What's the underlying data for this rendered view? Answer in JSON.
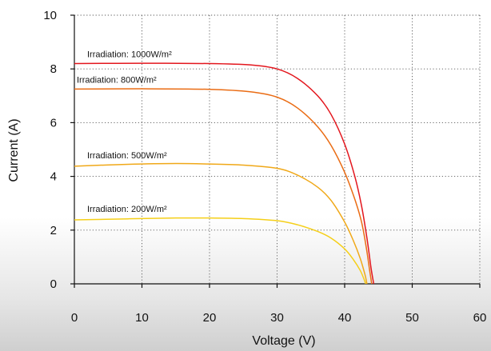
{
  "chart_data": {
    "type": "line",
    "xlabel": "Voltage (V)",
    "ylabel": "Current (A)",
    "xlim": [
      0,
      60
    ],
    "ylim": [
      0,
      10
    ],
    "xticks": [
      "0",
      "10",
      "20",
      "30",
      "40",
      "50",
      "60"
    ],
    "yticks": [
      "0",
      "2",
      "4",
      "6",
      "8",
      "10"
    ],
    "grid": true,
    "grid_style": "dotted",
    "series": [
      {
        "label": "Irradiation: 1000W/m²",
        "color": "#e3161d",
        "points": [
          [
            0,
            8.2
          ],
          [
            10,
            8.21
          ],
          [
            20,
            8.2
          ],
          [
            26,
            8.15
          ],
          [
            30,
            8.0
          ],
          [
            33,
            7.65
          ],
          [
            36,
            7.0
          ],
          [
            38,
            6.3
          ],
          [
            40,
            5.2
          ],
          [
            41.5,
            4.0
          ],
          [
            42.5,
            2.9
          ],
          [
            43.3,
            1.7
          ],
          [
            43.9,
            0.6
          ],
          [
            44.3,
            0
          ]
        ]
      },
      {
        "label": "Irradiation: 800W/m²",
        "color": "#ea6c14",
        "points": [
          [
            0,
            7.25
          ],
          [
            10,
            7.26
          ],
          [
            20,
            7.24
          ],
          [
            26,
            7.15
          ],
          [
            30,
            6.95
          ],
          [
            33,
            6.55
          ],
          [
            36,
            5.85
          ],
          [
            38,
            5.15
          ],
          [
            40,
            4.15
          ],
          [
            41.5,
            3.15
          ],
          [
            42.5,
            2.3
          ],
          [
            43.2,
            1.35
          ],
          [
            43.7,
            0.5
          ],
          [
            44.0,
            0
          ]
        ]
      },
      {
        "label": "Irradiation: 500W/m²",
        "color": "#f0a818",
        "points": [
          [
            0,
            4.38
          ],
          [
            8,
            4.45
          ],
          [
            15,
            4.48
          ],
          [
            20,
            4.46
          ],
          [
            25,
            4.42
          ],
          [
            30,
            4.3
          ],
          [
            33,
            4.05
          ],
          [
            36,
            3.6
          ],
          [
            38,
            3.1
          ],
          [
            40,
            2.3
          ],
          [
            41.3,
            1.6
          ],
          [
            42.3,
            0.95
          ],
          [
            43.0,
            0.35
          ],
          [
            43.3,
            0
          ]
        ]
      },
      {
        "label": "Irradiation: 200W/m²",
        "color": "#f5cf18",
        "points": [
          [
            0,
            2.38
          ],
          [
            8,
            2.42
          ],
          [
            15,
            2.45
          ],
          [
            20,
            2.45
          ],
          [
            25,
            2.43
          ],
          [
            30,
            2.35
          ],
          [
            33,
            2.2
          ],
          [
            36,
            1.95
          ],
          [
            38,
            1.7
          ],
          [
            40,
            1.3
          ],
          [
            41.3,
            0.9
          ],
          [
            42.3,
            0.5
          ],
          [
            42.9,
            0.15
          ],
          [
            43.1,
            0
          ]
        ]
      }
    ]
  }
}
